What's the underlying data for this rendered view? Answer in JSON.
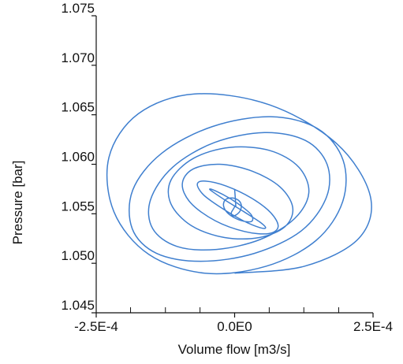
{
  "chart_data": {
    "type": "line",
    "title": "",
    "xlabel": "Volume flow [m3/s]",
    "ylabel": "Pressure [bar]",
    "xlim": [
      -0.00025,
      0.00025
    ],
    "ylim": [
      1.045,
      1.075
    ],
    "x_ticks": [
      {
        "value": -0.00025,
        "label": "-2.5E-4"
      },
      {
        "value": 0.0,
        "label": "0.0E0"
      },
      {
        "value": 0.00025,
        "label": "2.5E-4"
      }
    ],
    "x_minor_ticks": [
      -0.000188,
      -0.000125,
      -6.25e-05,
      6.25e-05,
      0.000125,
      0.000188
    ],
    "y_ticks": [
      {
        "value": 1.045,
        "label": "1.045"
      },
      {
        "value": 1.05,
        "label": "1.050"
      },
      {
        "value": 1.055,
        "label": "1.055"
      },
      {
        "value": 1.06,
        "label": "1.060"
      },
      {
        "value": 1.065,
        "label": "1.065"
      },
      {
        "value": 1.07,
        "label": "1.070"
      },
      {
        "value": 1.075,
        "label": "1.075"
      }
    ],
    "grid": false,
    "line_color": "#3f7fcf",
    "series": [
      {
        "x": [
          0.0,
          0.000126,
          0.000224,
          0.000245,
          0.000184,
          6.31e-05,
          -7.24e-05,
          -0.000174,
          -0.000227,
          -0.000218,
          -0.000155,
          -5.39e-05,
          5.68e-05,
          0.000147,
          0.000195,
          0.000196,
          0.00015,
          6.5e-05,
          -4.06e-05,
          -0.000132,
          -0.000184,
          -0.000185,
          -0.000141,
          -6.11e-05,
          3.56e-05,
          0.000121,
          0.000166,
          0.000167,
          0.000128,
          5.39e-05,
          -3.62e-05,
          -0.000112,
          -0.000152,
          -0.000148,
          -0.000104,
          -3.28e-05,
          4.61e-05,
          0.000108,
          0.000134,
          0.000116,
          6.3e-05,
          -8.8e-06,
          -7.43e-05,
          -0.000115,
          -0.000115,
          -7.82e-05,
          -1.81e-05,
          4.46e-05,
          9.1e-05,
          0.000105,
          8.23e-05,
          3.2e-05,
          -2.69e-05,
          -7.57e-05,
          -9.45e-05,
          -7.94e-05,
          -3.52e-05,
          1.85e-05,
          6.13e-05,
          7.86e-05,
          6.54e-05,
          3e-05,
          -1.5e-05,
          -5.26e-05,
          -6.74e-05,
          -5.6e-05,
          -2.4e-05,
          1.54e-05,
          4.57e-05,
          5.6e-05,
          4.48e-05,
          1.7e-05,
          -1.5e-05,
          -3.9e-05,
          -4.5e-05,
          -3.4e-05,
          -1e-05,
          1.4e-05,
          3e-05,
          3.2e-05,
          2.1e-05,
          3e-06,
          -1.3e-05,
          -2e-05,
          -1.7e-05,
          -6e-06,
          6e-06,
          1.2e-05,
          1e-05,
          3e-06,
          -4e-06,
          -6e-06,
          -2e-06,
          1e-06,
          2e-06,
          0.0
        ],
        "y": [
          1.049,
          1.0497,
          1.0525,
          1.0568,
          1.0621,
          1.066,
          1.0671,
          1.0651,
          1.0607,
          1.0552,
          1.0509,
          1.049,
          1.0497,
          1.0523,
          1.0562,
          1.0604,
          1.0636,
          1.0648,
          1.0638,
          1.0611,
          1.0574,
          1.0535,
          1.051,
          1.0502,
          1.051,
          1.0533,
          1.0567,
          1.06,
          1.0624,
          1.0632,
          1.0622,
          1.0597,
          1.0564,
          1.0535,
          1.0517,
          1.0514,
          1.0524,
          1.0545,
          1.0571,
          1.0597,
          1.0614,
          1.0617,
          1.0606,
          1.0584,
          1.056,
          1.0538,
          1.0526,
          1.0526,
          1.0537,
          1.0556,
          1.0577,
          1.0593,
          1.06,
          1.0595,
          1.058,
          1.0561,
          1.0543,
          1.0532,
          1.053,
          1.0537,
          1.0551,
          1.0566,
          1.0578,
          1.0583,
          1.058,
          1.0569,
          1.0556,
          1.0543,
          1.0536,
          1.0536,
          1.0542,
          1.0552,
          1.0563,
          1.0572,
          1.0575,
          1.0573,
          1.0566,
          1.0557,
          1.0549,
          1.0543,
          1.0542,
          1.0545,
          1.0551,
          1.0558,
          1.0564,
          1.0566,
          1.0564,
          1.0559,
          1.0553,
          1.0549,
          1.0548,
          1.0551,
          1.0555,
          1.0558,
          1.0559,
          1.0575
        ]
      }
    ]
  }
}
